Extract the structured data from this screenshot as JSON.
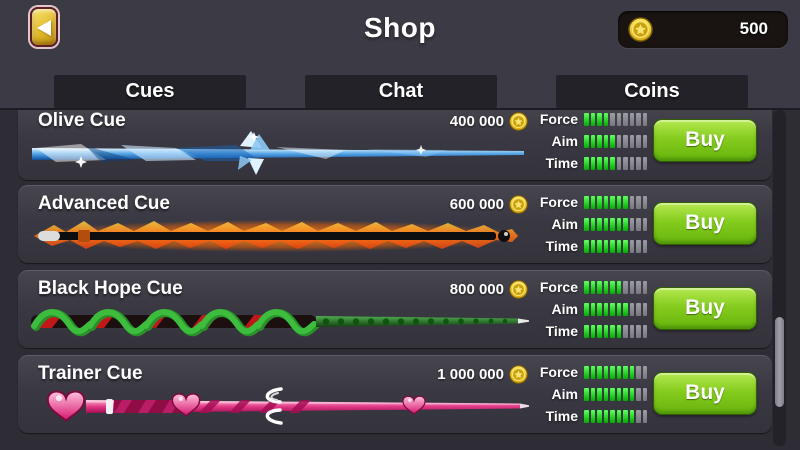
{
  "header": {
    "title": "Shop",
    "coin_balance": "500"
  },
  "tabs": [
    {
      "label": "Cues"
    },
    {
      "label": "Chat"
    },
    {
      "label": "Coins"
    }
  ],
  "stat_labels": {
    "force": "Force",
    "aim": "Aim",
    "time": "Time"
  },
  "segments_total": 10,
  "buy_label": "Buy",
  "colors": {
    "background": "#3c3b45",
    "tab_bg": "#232229",
    "row_bg": "#3a3943",
    "buy_green": "#84cc1d",
    "bar_green": "#19c619",
    "bar_gray": "#85858d",
    "coin_gold": "#f0c419",
    "back_button_gold": "#e0ba2c"
  },
  "rows": [
    {
      "name": "Olive Cue",
      "price": "400 000",
      "cue_style": "ice-blue-crystal",
      "stats": {
        "force": 4,
        "aim": 5,
        "time": 5
      }
    },
    {
      "name": "Advanced Cue",
      "price": "600 000",
      "cue_style": "black-flame",
      "stats": {
        "force": 7,
        "aim": 7,
        "time": 7
      }
    },
    {
      "name": "Black Hope Cue",
      "price": "800 000",
      "cue_style": "green-braid",
      "stats": {
        "force": 6,
        "aim": 7,
        "time": 6
      }
    },
    {
      "name": "Trainer Cue",
      "price": "1 000 000",
      "cue_style": "pink-hearts",
      "stats": {
        "force": 8,
        "aim": 8,
        "time": 8
      }
    }
  ]
}
